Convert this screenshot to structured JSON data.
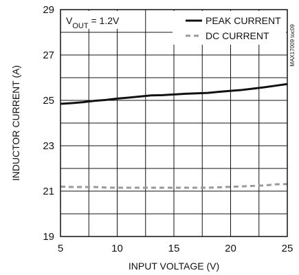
{
  "chart_data": {
    "type": "line",
    "xlabel": "INPUT VOLTAGE (V)",
    "ylabel": "INDUCTOR CURRENT (A)",
    "xlim": [
      5,
      25
    ],
    "ylim": [
      19,
      29
    ],
    "xticks": [
      5,
      10,
      15,
      20,
      25
    ],
    "yticks": [
      19,
      21,
      23,
      25,
      27,
      29
    ],
    "x_minor_step": 2.5,
    "y_minor_step": 1,
    "grid": true,
    "legend_position": "top-right",
    "annotation": {
      "main": "V",
      "sub": "OUT",
      "suffix": " = 1.2V"
    },
    "side_code": "MAX17009 toc09",
    "series": [
      {
        "name": "PEAK CURRENT",
        "style": "solid",
        "color": "#111111",
        "x": [
          5,
          6,
          7,
          8,
          9,
          10,
          11,
          12,
          13,
          14,
          15,
          16,
          17,
          18,
          19,
          20,
          21,
          22,
          23,
          24,
          25
        ],
        "y": [
          24.85,
          24.88,
          24.92,
          24.98,
          25.02,
          25.08,
          25.12,
          25.17,
          25.22,
          25.23,
          25.26,
          25.29,
          25.31,
          25.33,
          25.38,
          25.42,
          25.46,
          25.52,
          25.58,
          25.65,
          25.72
        ]
      },
      {
        "name": "DC CURRENT",
        "style": "dashed",
        "color": "#999999",
        "x": [
          5,
          6,
          7,
          8,
          9,
          10,
          11,
          12,
          13,
          14,
          15,
          16,
          17,
          18,
          19,
          20,
          21,
          22,
          23,
          24,
          25
        ],
        "y": [
          21.2,
          21.18,
          21.18,
          21.18,
          21.16,
          21.15,
          21.15,
          21.15,
          21.15,
          21.15,
          21.15,
          21.15,
          21.15,
          21.15,
          21.17,
          21.19,
          21.21,
          21.23,
          21.25,
          21.3,
          21.31
        ]
      }
    ]
  }
}
